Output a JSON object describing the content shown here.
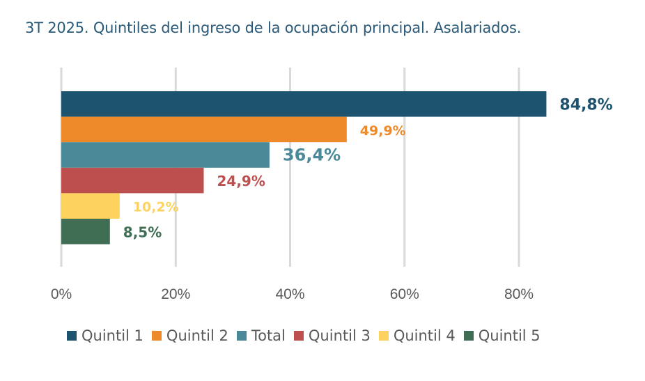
{
  "chart_data": {
    "type": "bar",
    "orientation": "horizontal",
    "title": "3T 2025. Quintiles del ingreso de la ocupación principal. Asalariados.",
    "xlabel": "",
    "ylabel": "",
    "xlim": [
      0,
      100
    ],
    "xticks": [
      0,
      20,
      40,
      60,
      80
    ],
    "xtick_labels": [
      "0%",
      "20%",
      "40%",
      "60%",
      "80%"
    ],
    "grid": true,
    "legend_position": "bottom",
    "series": [
      {
        "name": "Quintil 1",
        "value": 84.8,
        "label": "84,8%",
        "color": "#1d536e"
      },
      {
        "name": "Quintil 2",
        "value": 49.9,
        "label": "49,9%",
        "color": "#ee8a2a"
      },
      {
        "name": "Total",
        "value": 36.4,
        "label": "36,4%",
        "color": "#4a8a98"
      },
      {
        "name": "Quintil 3",
        "value": 24.9,
        "label": "24,9%",
        "color": "#bd4f4f"
      },
      {
        "name": "Quintil 4",
        "value": 10.2,
        "label": "10,2%",
        "color": "#fdd25e"
      },
      {
        "name": "Quintil 5",
        "value": 8.5,
        "label": "8,5%",
        "color": "#3f6e54"
      }
    ]
  }
}
